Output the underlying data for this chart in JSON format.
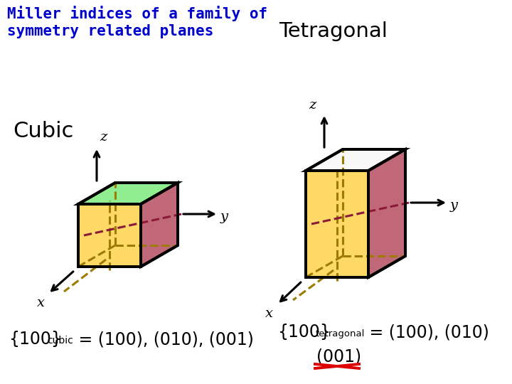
{
  "title_line1": "Miller indices of a family of",
  "title_line2": "symmetry related planes",
  "title_color": "#0000CC",
  "bg_color": "#FFFFFF",
  "cubic_label": "Cubic",
  "tetragonal_label": "Tetragonal",
  "green_color": "#90EE90",
  "yellow_color": "#FFD966",
  "pink_color": "#C06878",
  "white_color": "#F8F8F8",
  "edge_color": "#000000",
  "dashed_gold": "#9B7B00",
  "dashed_rose": "#8B1A3A",
  "red_cross": "#DD0000"
}
